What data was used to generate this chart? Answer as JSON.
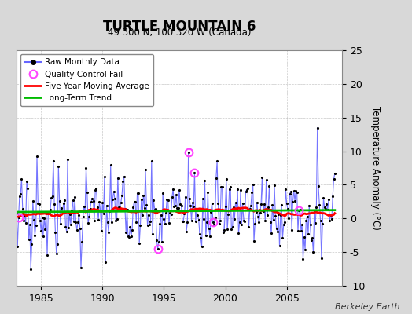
{
  "title": "TURTLE MOUNTAIN 6",
  "subtitle": "49.300 N, 100.320 W (Canada)",
  "ylabel": "Temperature Anomaly (°C)",
  "credit": "Berkeley Earth",
  "xlim": [
    1983.0,
    2009.5
  ],
  "ylim": [
    -10,
    25
  ],
  "yticks": [
    -10,
    -5,
    0,
    5,
    10,
    15,
    20,
    25
  ],
  "xticks": [
    1985,
    1990,
    1995,
    2000,
    2005
  ],
  "fig_bg_color": "#d8d8d8",
  "plot_bg_color": "#ffffff",
  "raw_line_color": "#6666ff",
  "raw_marker_color": "#000000",
  "moving_avg_color": "#ff0000",
  "trend_color": "#00bb00",
  "qc_fail_color": "#ff44ff",
  "seed": 17,
  "n_months": 312,
  "start_year": 1983.0
}
